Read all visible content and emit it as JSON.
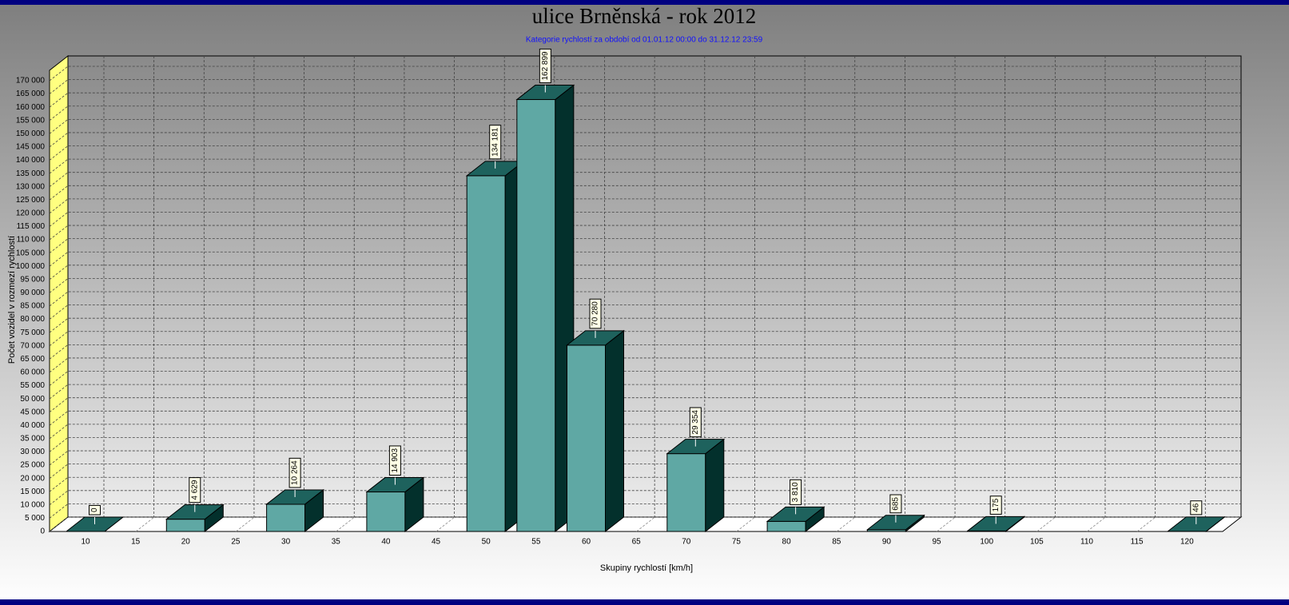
{
  "chart_data": {
    "type": "bar3d",
    "title": "ulice Brněnská - rok 2012",
    "subtitle": "Kategorie rychlostí za období od 01.01.12 00:00 do 31.12.12 23:59",
    "y_label": "Počet vozidel v rozmezí rychlostí",
    "x_label": "Skupiny rychlostí [km/h]",
    "categories": [
      "10",
      "15",
      "20",
      "25",
      "30",
      "35",
      "40",
      "45",
      "50",
      "55",
      "60",
      "65",
      "70",
      "75",
      "80",
      "85",
      "90",
      "95",
      "100",
      "105",
      "110",
      "115",
      "120"
    ],
    "values": [
      0,
      null,
      4629,
      null,
      10264,
      null,
      14903,
      null,
      134181,
      162899,
      70280,
      null,
      29354,
      null,
      3810,
      null,
      685,
      null,
      175,
      null,
      null,
      null,
      46
    ],
    "value_labels": [
      "0",
      null,
      "4 629",
      null,
      "10 264",
      null,
      "14 903",
      null,
      "134 181",
      "162 899",
      "70 280",
      null,
      "29 354",
      null,
      "3 810",
      null,
      "685",
      null,
      "175",
      null,
      null,
      null,
      "46"
    ],
    "color": "#5fa8a4",
    "ylim": [
      0,
      170000
    ],
    "yticks": [
      0,
      {
        "value": 5000,
        "label": "5 000"
      },
      {
        "value": 10000,
        "label": "10 000"
      },
      {
        "value": 15000,
        "label": "15 000"
      },
      {
        "value": 20000,
        "label": "20 000"
      },
      {
        "value": 25000,
        "label": "25 000"
      },
      {
        "value": 30000,
        "label": "30 000"
      },
      {
        "value": 35000,
        "label": "35 000"
      },
      {
        "value": 40000,
        "label": "40 000"
      },
      {
        "value": 45000,
        "label": "45 000"
      },
      {
        "value": 50000,
        "label": "50 000"
      },
      {
        "value": 55000,
        "label": "55 000"
      },
      {
        "value": 60000,
        "label": "60 000"
      },
      {
        "value": 65000,
        "label": "65 000"
      },
      {
        "value": 70000,
        "label": "70 000"
      },
      {
        "value": 75000,
        "label": "75 000"
      },
      {
        "value": 80000,
        "label": "80 000"
      },
      {
        "value": 85000,
        "label": "85 000"
      },
      {
        "value": 90000,
        "label": "90 000"
      },
      {
        "value": 95000,
        "label": "95 000"
      },
      {
        "value": 100000,
        "label": "100 000"
      },
      {
        "value": 105000,
        "label": "105 000"
      },
      {
        "value": 110000,
        "label": "110 000"
      },
      {
        "value": 115000,
        "label": "115 000"
      },
      {
        "value": 120000,
        "label": "120 000"
      },
      {
        "value": 125000,
        "label": "125 000"
      },
      {
        "value": 130000,
        "label": "130 000"
      },
      {
        "value": 135000,
        "label": "135 000"
      },
      {
        "value": 140000,
        "label": "140 000"
      },
      {
        "value": 145000,
        "label": "145 000"
      },
      {
        "value": 150000,
        "label": "150 000"
      },
      {
        "value": 155000,
        "label": "155 000"
      },
      {
        "value": 160000,
        "label": "160 000"
      },
      {
        "value": 165000,
        "label": "165 000"
      },
      {
        "value": 170000,
        "label": "170 000"
      }
    ],
    "grid": true
  }
}
